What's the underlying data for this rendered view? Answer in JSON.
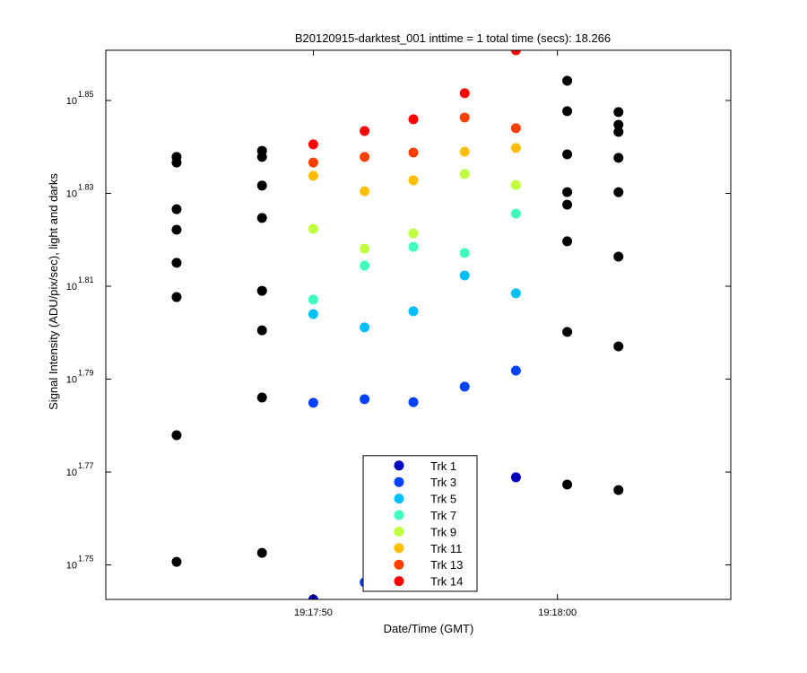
{
  "chart_data": {
    "type": "scatter",
    "title": "B20120915-darktest_001 inttime = 1 total time (secs): 18.266",
    "x_label": "Date/Time (GMT)",
    "y_label": "Signal Intensity (ADU/pix/sec), light and darks",
    "yscale": "log",
    "xlim": [
      "19:17:41.5",
      "19:18:07.1"
    ],
    "xticks": [
      "19:17:50",
      "19:18:00"
    ],
    "ylim": [
      55.28,
      72.58
    ],
    "yticks": [
      {
        "value": 56.234,
        "label": [
          "10",
          "1.75"
        ]
      },
      {
        "value": 58.884,
        "label": [
          "10",
          "1.77"
        ]
      },
      {
        "value": 61.66,
        "label": [
          "10",
          "1.79"
        ]
      },
      {
        "value": 64.565,
        "label": [
          "10",
          "1.81"
        ]
      },
      {
        "value": 67.608,
        "label": [
          "10",
          "1.83"
        ]
      },
      {
        "value": 70.795,
        "label": [
          "10",
          "1.85"
        ]
      }
    ],
    "legend": "lower center",
    "series": [
      {
        "color": "#000000",
        "x": [
          "19:17:44.4",
          "19:17:44.4",
          "19:17:44.4",
          "19:17:44.4",
          "19:17:44.4",
          "19:17:44.4",
          "19:17:44.4",
          "19:17:44.4",
          "19:17:47.9",
          "19:17:47.9",
          "19:17:47.9",
          "19:17:47.9",
          "19:17:47.9",
          "19:17:47.9",
          "19:17:47.9",
          "19:17:47.9",
          "19:18:00.4",
          "19:18:00.4",
          "19:18:00.4",
          "19:18:00.4",
          "19:18:00.4",
          "19:18:00.4",
          "19:18:00.4",
          "19:18:00.4",
          "19:18:02.5",
          "19:18:02.5",
          "19:18:02.5",
          "19:18:02.5",
          "19:18:02.5",
          "19:18:02.5",
          "19:18:02.5",
          "19:18:02.5"
        ],
        "values": [
          68.84,
          68.65,
          67.08,
          66.4,
          65.32,
          64.22,
          59.97,
          56.32,
          69.05,
          68.84,
          67.87,
          66.79,
          64.42,
          63.17,
          61.1,
          56.57,
          71.49,
          70.42,
          68.93,
          67.65,
          67.23,
          66.02,
          63.12,
          58.52,
          70.39,
          69.95,
          69.7,
          68.81,
          67.65,
          65.52,
          62.67,
          58.36
        ]
      },
      {
        "name": "Trk 1",
        "color": "#0000bf",
        "x": [
          "19:17:50.0",
          "19:17:58.3"
        ],
        "values": [
          55.28,
          58.73
        ]
      },
      {
        "name": "Trk 3",
        "color": "#0040ff",
        "x": [
          "19:17:50.0",
          "19:17:52.1",
          "19:17:54.1",
          "19:17:56.2",
          "19:17:58.3",
          "19:17:52.1"
        ],
        "values": [
          60.94,
          61.05,
          60.96,
          61.43,
          61.92,
          55.75
        ]
      },
      {
        "name": "Trk 5",
        "color": "#00bfff",
        "x": [
          "19:17:50.0",
          "19:17:52.1",
          "19:17:54.1",
          "19:17:56.2",
          "19:17:58.3"
        ],
        "values": [
          63.68,
          63.26,
          63.77,
          64.91,
          64.34
        ]
      },
      {
        "name": "Trk 7",
        "color": "#40ffbf",
        "x": [
          "19:17:50.0",
          "19:17:52.1",
          "19:17:54.1",
          "19:17:56.2",
          "19:17:58.3"
        ],
        "values": [
          64.14,
          65.23,
          65.84,
          65.64,
          66.93
        ]
      },
      {
        "name": "Trk 9",
        "color": "#bfff40",
        "x": [
          "19:17:50.0",
          "19:17:52.1",
          "19:17:54.1",
          "19:17:56.2",
          "19:17:58.3"
        ],
        "values": [
          66.43,
          65.78,
          66.28,
          68.26,
          67.89
        ]
      },
      {
        "name": "Trk 11",
        "color": "#ffbf00",
        "x": [
          "19:17:50.0",
          "19:17:52.1",
          "19:17:54.1",
          "19:17:56.2",
          "19:17:58.3"
        ],
        "values": [
          68.2,
          67.68,
          68.05,
          69.02,
          69.15
        ]
      },
      {
        "name": "Trk 13",
        "color": "#ff4000",
        "x": [
          "19:17:50.0",
          "19:17:52.1",
          "19:17:54.1",
          "19:17:56.2",
          "19:17:58.3"
        ],
        "values": [
          68.65,
          68.84,
          68.99,
          70.2,
          69.83
        ]
      },
      {
        "name": "Trk 14",
        "color": "#ff0000",
        "x": [
          "19:17:50.0",
          "19:17:52.1",
          "19:17:54.1",
          "19:17:56.2",
          "19:17:58.3"
        ],
        "values": [
          69.27,
          69.73,
          70.14,
          71.05,
          72.58
        ]
      }
    ]
  }
}
